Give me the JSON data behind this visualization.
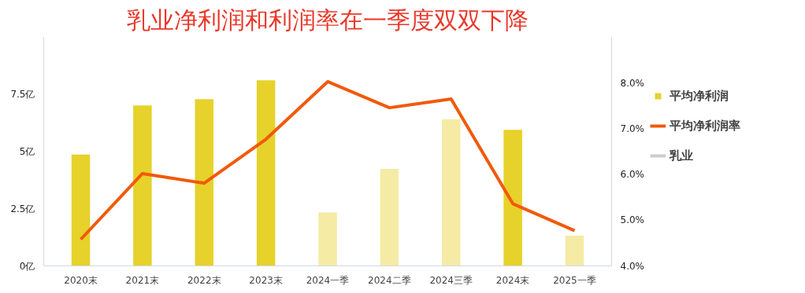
{
  "chart_data": {
    "type": "bar",
    "title": "乳业净利润和利润率在一季度双双下降",
    "categories": [
      "2020末",
      "2021末",
      "2022末",
      "2023末",
      "2024一季",
      "2024二季",
      "2024三季",
      "2024末",
      "2025一季"
    ],
    "series": [
      {
        "name": "平均净利润",
        "color": "#e6d22a",
        "colors": [
          "#e6d22a",
          "#e6d22a",
          "#e6d22a",
          "#e6d22a",
          "#f5eba5",
          "#f5eba5",
          "#f5eba5",
          "#e6d22a",
          "#f5eba5"
        ],
        "values": [
          4.87,
          7.02,
          7.29,
          8.12,
          2.34,
          4.24,
          6.42,
          5.95,
          1.32
        ]
      },
      {
        "name": "平均净利润率",
        "type": "line",
        "axis": "y2",
        "color": "#f05a0a",
        "values": [
          4.58,
          6.02,
          5.81,
          6.77,
          8.03,
          7.46,
          7.65,
          5.36,
          4.77
        ]
      },
      {
        "name": "乳业",
        "type": "line",
        "color": "#cccccc",
        "values": [
          null,
          null,
          null,
          null,
          null,
          null,
          null,
          null,
          null
        ]
      }
    ],
    "ylim": [
      0,
      10
    ],
    "yticks": [
      {
        "value": 0,
        "label": "0亿"
      },
      {
        "value": 2.5,
        "label": "2.5亿"
      },
      {
        "value": 5,
        "label": "5亿"
      },
      {
        "value": 7.5,
        "label": "7.5亿"
      }
    ],
    "y2lim": [
      4,
      9
    ],
    "y2ticks": [
      {
        "value": 4,
        "label": "4.0%"
      },
      {
        "value": 5,
        "label": "5.0%"
      },
      {
        "value": 6,
        "label": "6.0%"
      },
      {
        "value": 7,
        "label": "7.0%"
      },
      {
        "value": 8,
        "label": "8.0%"
      }
    ],
    "legend": "right",
    "grid": false,
    "marker": "none",
    "line_style": "solid"
  }
}
